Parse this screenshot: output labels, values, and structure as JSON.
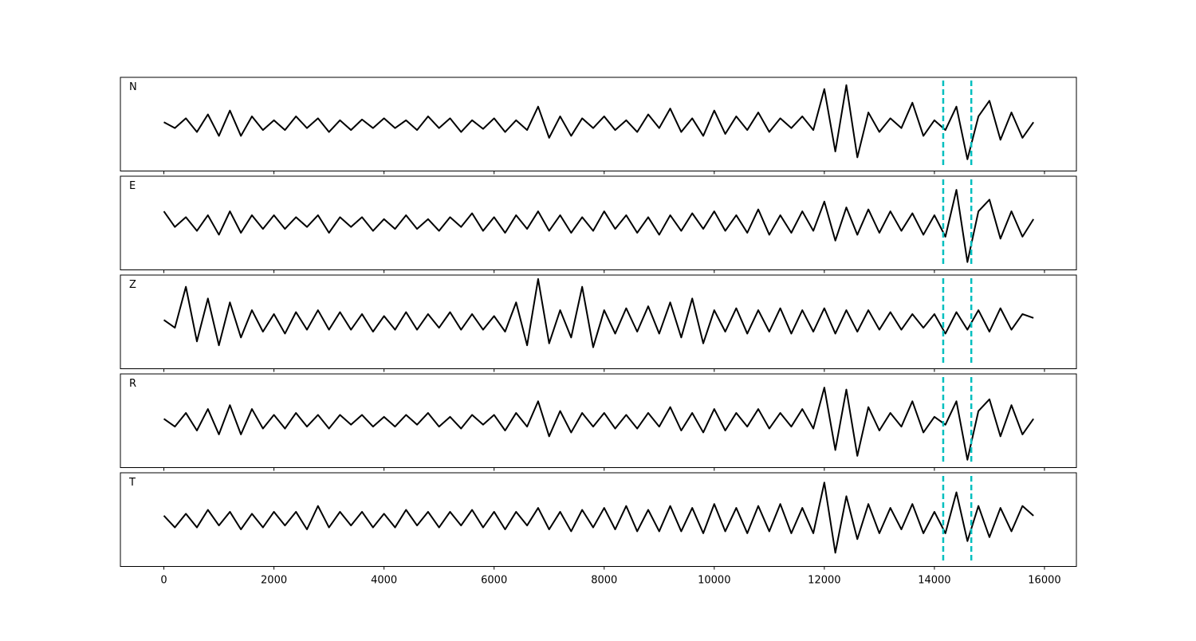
{
  "chart_data": {
    "type": "line",
    "x": [
      0,
      200,
      400,
      600,
      800,
      1000,
      1200,
      1400,
      1600,
      1800,
      2000,
      2200,
      2400,
      2600,
      2800,
      3000,
      3200,
      3400,
      3600,
      3800,
      4000,
      4200,
      4400,
      4600,
      4800,
      5000,
      5200,
      5400,
      5600,
      5800,
      6000,
      6200,
      6400,
      6600,
      6800,
      7000,
      7200,
      7400,
      7600,
      7800,
      8000,
      8200,
      8400,
      8600,
      8800,
      9000,
      9200,
      9400,
      9600,
      9800,
      10000,
      10200,
      10400,
      10600,
      10800,
      11000,
      11200,
      11400,
      11600,
      11800,
      12000,
      12200,
      12400,
      12600,
      12800,
      13000,
      13200,
      13400,
      13600,
      13800,
      14000,
      14200,
      14400,
      14600,
      14800,
      15000,
      15200,
      15400,
      15600,
      15800
    ],
    "series": [
      {
        "name": "N",
        "color": "#000000",
        "values": [
          0.05,
          -0.1,
          0.15,
          -0.2,
          0.25,
          -0.3,
          0.35,
          -0.3,
          0.2,
          -0.15,
          0.1,
          -0.15,
          0.2,
          -0.1,
          0.15,
          -0.2,
          0.1,
          -0.15,
          0.12,
          -0.1,
          0.15,
          -0.1,
          0.1,
          -0.15,
          0.2,
          -0.1,
          0.15,
          -0.2,
          0.1,
          -0.12,
          0.15,
          -0.2,
          0.1,
          -0.15,
          0.45,
          -0.35,
          0.2,
          -0.3,
          0.15,
          -0.1,
          0.2,
          -0.15,
          0.1,
          -0.2,
          0.25,
          -0.1,
          0.4,
          -0.2,
          0.15,
          -0.3,
          0.35,
          -0.25,
          0.2,
          -0.15,
          0.3,
          -0.2,
          0.15,
          -0.1,
          0.2,
          -0.15,
          0.9,
          -0.7,
          1.0,
          -0.85,
          0.3,
          -0.2,
          0.15,
          -0.1,
          0.55,
          -0.3,
          0.1,
          -0.15,
          0.45,
          -0.9,
          0.2,
          0.6,
          -0.4,
          0.3,
          -0.35,
          0.05
        ]
      },
      {
        "name": "E",
        "color": "#000000",
        "values": [
          0.3,
          -0.1,
          0.15,
          -0.2,
          0.2,
          -0.3,
          0.3,
          -0.25,
          0.2,
          -0.15,
          0.2,
          -0.15,
          0.15,
          -0.1,
          0.2,
          -0.25,
          0.15,
          -0.1,
          0.15,
          -0.2,
          0.1,
          -0.15,
          0.2,
          -0.15,
          0.1,
          -0.2,
          0.15,
          -0.1,
          0.25,
          -0.2,
          0.15,
          -0.25,
          0.2,
          -0.15,
          0.3,
          -0.2,
          0.2,
          -0.25,
          0.15,
          -0.2,
          0.3,
          -0.15,
          0.2,
          -0.25,
          0.15,
          -0.3,
          0.2,
          -0.2,
          0.25,
          -0.15,
          0.3,
          -0.2,
          0.2,
          -0.25,
          0.35,
          -0.3,
          0.2,
          -0.25,
          0.3,
          -0.2,
          0.55,
          -0.45,
          0.4,
          -0.3,
          0.35,
          -0.25,
          0.3,
          -0.2,
          0.25,
          -0.3,
          0.2,
          -0.35,
          0.85,
          -1.0,
          0.3,
          0.6,
          -0.4,
          0.3,
          -0.35,
          0.1
        ]
      },
      {
        "name": "Z",
        "color": "#000000",
        "values": [
          0.05,
          -0.15,
          0.9,
          -0.5,
          0.6,
          -0.6,
          0.5,
          -0.4,
          0.3,
          -0.25,
          0.2,
          -0.3,
          0.25,
          -0.2,
          0.3,
          -0.2,
          0.25,
          -0.2,
          0.2,
          -0.25,
          0.15,
          -0.2,
          0.25,
          -0.2,
          0.2,
          -0.15,
          0.25,
          -0.2,
          0.2,
          -0.2,
          0.15,
          -0.25,
          0.5,
          -0.6,
          1.1,
          -0.55,
          0.3,
          -0.4,
          0.9,
          -0.65,
          0.3,
          -0.3,
          0.35,
          -0.25,
          0.4,
          -0.3,
          0.5,
          -0.4,
          0.6,
          -0.55,
          0.3,
          -0.25,
          0.35,
          -0.3,
          0.3,
          -0.25,
          0.35,
          -0.3,
          0.3,
          -0.25,
          0.35,
          -0.3,
          0.3,
          -0.25,
          0.3,
          -0.2,
          0.25,
          -0.2,
          0.2,
          -0.15,
          0.2,
          -0.3,
          0.25,
          -0.2,
          0.3,
          -0.25,
          0.35,
          -0.2,
          0.2,
          0.1
        ]
      },
      {
        "name": "R",
        "color": "#000000",
        "values": [
          0.05,
          -0.15,
          0.2,
          -0.25,
          0.3,
          -0.35,
          0.4,
          -0.35,
          0.3,
          -0.2,
          0.15,
          -0.2,
          0.2,
          -0.15,
          0.15,
          -0.2,
          0.15,
          -0.1,
          0.15,
          -0.15,
          0.1,
          -0.15,
          0.15,
          -0.1,
          0.2,
          -0.15,
          0.1,
          -0.2,
          0.15,
          -0.1,
          0.15,
          -0.25,
          0.2,
          -0.15,
          0.5,
          -0.4,
          0.25,
          -0.3,
          0.2,
          -0.15,
          0.2,
          -0.2,
          0.15,
          -0.2,
          0.2,
          -0.15,
          0.35,
          -0.25,
          0.2,
          -0.3,
          0.3,
          -0.25,
          0.2,
          -0.15,
          0.3,
          -0.2,
          0.2,
          -0.15,
          0.3,
          -0.2,
          0.85,
          -0.75,
          0.8,
          -0.9,
          0.35,
          -0.25,
          0.2,
          -0.15,
          0.5,
          -0.3,
          0.1,
          -0.1,
          0.5,
          -1.0,
          0.25,
          0.55,
          -0.4,
          0.4,
          -0.35,
          0.05
        ]
      },
      {
        "name": "T",
        "color": "#000000",
        "values": [
          0.1,
          -0.2,
          0.15,
          -0.2,
          0.25,
          -0.15,
          0.2,
          -0.25,
          0.15,
          -0.2,
          0.2,
          -0.15,
          0.2,
          -0.25,
          0.35,
          -0.2,
          0.2,
          -0.15,
          0.2,
          -0.2,
          0.15,
          -0.2,
          0.25,
          -0.15,
          0.2,
          -0.2,
          0.2,
          -0.15,
          0.25,
          -0.2,
          0.2,
          -0.25,
          0.2,
          -0.15,
          0.3,
          -0.25,
          0.2,
          -0.3,
          0.25,
          -0.2,
          0.3,
          -0.25,
          0.35,
          -0.3,
          0.25,
          -0.3,
          0.35,
          -0.3,
          0.3,
          -0.35,
          0.4,
          -0.3,
          0.3,
          -0.35,
          0.35,
          -0.3,
          0.4,
          -0.35,
          0.3,
          -0.35,
          0.95,
          -0.85,
          0.6,
          -0.5,
          0.4,
          -0.35,
          0.3,
          -0.25,
          0.4,
          -0.35,
          0.2,
          -0.35,
          0.7,
          -0.55,
          0.35,
          -0.45,
          0.3,
          -0.3,
          0.35,
          0.1
        ]
      }
    ],
    "xlim": [
      -790,
      16580
    ],
    "ylim": [
      -1.2,
      1.2
    ],
    "xticks": [
      0,
      2000,
      4000,
      6000,
      8000,
      10000,
      12000,
      14000,
      16000
    ],
    "markers": [
      14160,
      14670
    ],
    "marker_color": "#00bfbf"
  }
}
